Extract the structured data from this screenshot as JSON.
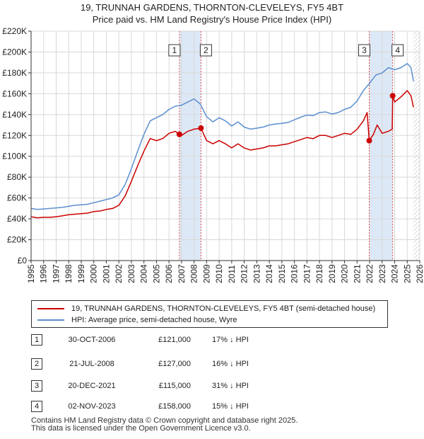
{
  "chart_data": {
    "type": "line",
    "title": "19, TRUNNAH GARDENS, THORNTON-CLEVELEYS, FY5 4BT\nPrice paid vs. HM Land Registry's House Price Index (HPI)",
    "title_lines": [
      "19, TRUNNAH GARDENS, THORNTON-CLEVELEYS, FY5 4BT",
      "Price paid vs. HM Land Registry's House Price Index (HPI)"
    ],
    "xlabel": "",
    "ylabel": "",
    "xlim": [
      1995,
      2026
    ],
    "ylim": [
      0,
      220000
    ],
    "x_ticks": [
      1995,
      1996,
      1997,
      1998,
      1999,
      2000,
      2001,
      2002,
      2003,
      2004,
      2005,
      2006,
      2007,
      2008,
      2009,
      2010,
      2011,
      2012,
      2013,
      2014,
      2015,
      2016,
      2017,
      2018,
      2019,
      2020,
      2021,
      2022,
      2023,
      2024,
      2025,
      2026
    ],
    "y_ticks": [
      0,
      20000,
      40000,
      60000,
      80000,
      100000,
      120000,
      140000,
      160000,
      180000,
      200000,
      220000
    ],
    "y_tick_labels": [
      "£0",
      "£20K",
      "£40K",
      "£60K",
      "£80K",
      "£100K",
      "£120K",
      "£140K",
      "£160K",
      "£180K",
      "£200K",
      "£220K"
    ],
    "grid": true,
    "future_hatch_from": 2025.5,
    "sale_bands": [
      [
        2006.83,
        2008.55
      ],
      [
        2021.97,
        2023.84
      ]
    ],
    "series": [
      {
        "name": "19, TRUNNAH GARDENS, THORNTON-CLEVELEYS, FY5 4BT (semi-detached house)",
        "color": "#cc0000",
        "x": [
          1995.0,
          1995.5,
          1996.0,
          1996.5,
          1997.0,
          1997.5,
          1998.0,
          1998.5,
          1999.0,
          1999.5,
          2000.0,
          2000.5,
          2001.0,
          2001.5,
          2002.0,
          2002.5,
          2003.0,
          2003.5,
          2004.0,
          2004.5,
          2005.0,
          2005.5,
          2006.0,
          2006.5,
          2006.83,
          2007.0,
          2007.5,
          2008.0,
          2008.55,
          2009.0,
          2009.5,
          2010.0,
          2010.5,
          2011.0,
          2011.5,
          2012.0,
          2012.5,
          2013.0,
          2013.5,
          2014.0,
          2014.5,
          2015.0,
          2015.5,
          2016.0,
          2016.5,
          2017.0,
          2017.5,
          2018.0,
          2018.5,
          2019.0,
          2019.5,
          2020.0,
          2020.5,
          2021.0,
          2021.5,
          2021.8,
          2021.97,
          2022.3,
          2022.6,
          2023.0,
          2023.5,
          2023.8,
          2023.84,
          2024.0,
          2024.5,
          2025.0,
          2025.3,
          2025.5
        ],
        "values": [
          42000,
          41000,
          41500,
          41500,
          42000,
          43000,
          44000,
          44500,
          45000,
          45500,
          47000,
          47500,
          49000,
          50000,
          53000,
          62000,
          76000,
          91000,
          105000,
          117000,
          115000,
          117000,
          122000,
          124000,
          121000,
          120000,
          124000,
          126000,
          127000,
          115000,
          112000,
          115000,
          112000,
          108000,
          112000,
          108000,
          106000,
          107000,
          108000,
          110000,
          110000,
          111000,
          112000,
          114000,
          116000,
          118000,
          117000,
          120000,
          120000,
          118000,
          120000,
          122000,
          121000,
          126000,
          134000,
          142000,
          115000,
          121000,
          130000,
          122000,
          124000,
          126000,
          158000,
          152000,
          157000,
          163000,
          158000,
          147000
        ]
      },
      {
        "name": "HPI: Average price, semi-detached house, Wyre",
        "color": "#5b8fd0",
        "x": [
          1995.0,
          1995.5,
          1996.0,
          1996.5,
          1997.0,
          1997.5,
          1998.0,
          1998.5,
          1999.0,
          1999.5,
          2000.0,
          2000.5,
          2001.0,
          2001.5,
          2002.0,
          2002.5,
          2003.0,
          2003.5,
          2004.0,
          2004.5,
          2005.0,
          2005.5,
          2006.0,
          2006.5,
          2007.0,
          2007.5,
          2008.0,
          2008.5,
          2009.0,
          2009.5,
          2010.0,
          2010.5,
          2011.0,
          2011.5,
          2012.0,
          2012.5,
          2013.0,
          2013.5,
          2014.0,
          2014.5,
          2015.0,
          2015.5,
          2016.0,
          2016.5,
          2017.0,
          2017.5,
          2018.0,
          2018.5,
          2019.0,
          2019.5,
          2020.0,
          2020.5,
          2021.0,
          2021.5,
          2022.0,
          2022.5,
          2023.0,
          2023.5,
          2024.0,
          2024.5,
          2025.0,
          2025.3,
          2025.5
        ],
        "values": [
          50000,
          49000,
          49500,
          50000,
          50500,
          51000,
          52000,
          53000,
          53500,
          54000,
          55500,
          57000,
          58500,
          60000,
          63000,
          73000,
          88000,
          105000,
          121000,
          134000,
          137000,
          140000,
          145000,
          148000,
          149000,
          152000,
          155000,
          150000,
          138000,
          133000,
          137000,
          134000,
          129000,
          133000,
          128000,
          126000,
          127000,
          128000,
          130000,
          131000,
          131500,
          132500,
          135000,
          137500,
          139500,
          139000,
          142000,
          142500,
          140500,
          142000,
          145000,
          147000,
          153000,
          163000,
          170000,
          178000,
          180000,
          185000,
          183000,
          185000,
          189000,
          185000,
          172000
        ]
      }
    ],
    "sale_points": [
      {
        "label": "1",
        "x": 2006.83,
        "value": 121000
      },
      {
        "label": "2",
        "x": 2008.55,
        "value": 127000
      },
      {
        "label": "3",
        "x": 2021.97,
        "value": 115000
      },
      {
        "label": "4",
        "x": 2023.84,
        "value": 158000
      }
    ]
  },
  "legend": {
    "property_label": "19, TRUNNAH GARDENS, THORNTON-CLEVELEYS, FY5 4BT (semi-detached house)",
    "hpi_label": "HPI: Average price, semi-detached house, Wyre"
  },
  "sales": [
    {
      "num": "1",
      "date": "30-OCT-2006",
      "price": "£121,000",
      "hpi": "17% ↓ HPI"
    },
    {
      "num": "2",
      "date": "21-JUL-2008",
      "price": "£127,000",
      "hpi": "16% ↓ HPI"
    },
    {
      "num": "3",
      "date": "20-DEC-2021",
      "price": "£115,000",
      "hpi": "31% ↓ HPI"
    },
    {
      "num": "4",
      "date": "02-NOV-2023",
      "price": "£158,000",
      "hpi": "15% ↓ HPI"
    }
  ],
  "footer": {
    "line1": "Contains HM Land Registry data © Crown copyright and database right 2025.",
    "line2": "This data is licensed under the Open Government Licence v3.0."
  },
  "colors": {
    "property": "#cc0000",
    "hpi": "#5b8fd0",
    "band": "#dde8f6",
    "grid": "#d8d8d8",
    "marker_line": "#e05050"
  }
}
